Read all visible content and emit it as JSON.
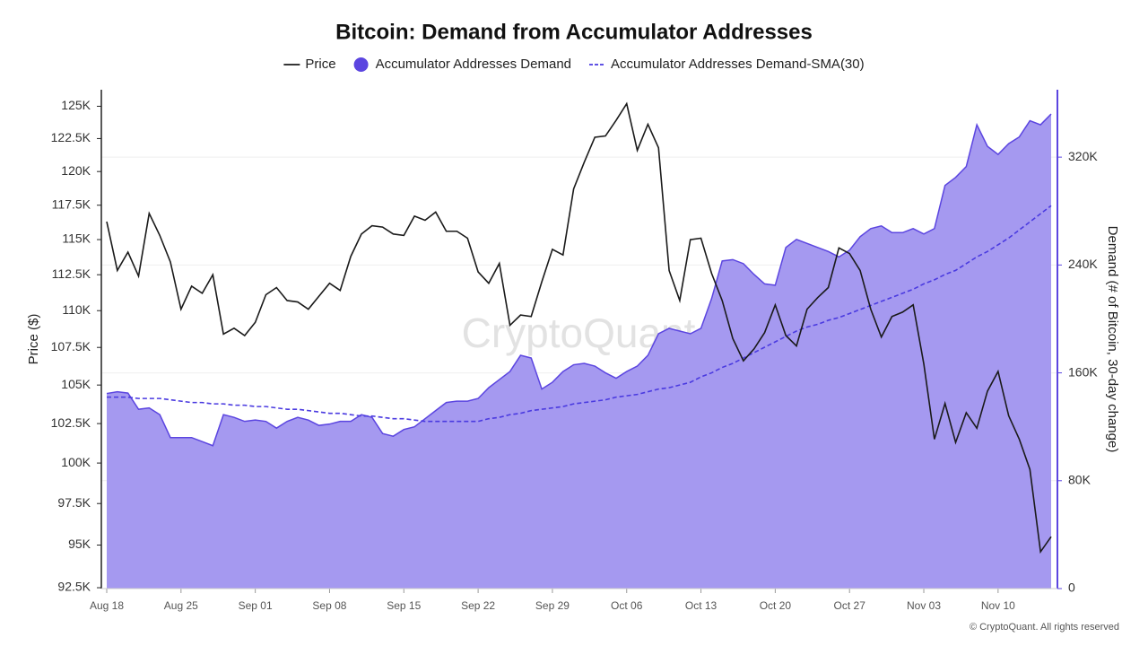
{
  "chart_data": {
    "type": "line",
    "title": "Bitcoin: Demand from Accumulator Addresses",
    "ylabel": "Price ($)",
    "y2label": "Demand (# of Bitcoin, 30-day change)",
    "watermark": "CryptoQuant",
    "copyright": "© CryptoQuant. All rights reserved",
    "ylog": true,
    "grid": true,
    "categories": [
      "Aug 18",
      null,
      null,
      null,
      null,
      null,
      null,
      "Aug 25",
      null,
      null,
      null,
      null,
      null,
      null,
      "Sep 01",
      null,
      null,
      null,
      null,
      null,
      null,
      "Sep 08",
      null,
      null,
      null,
      null,
      null,
      null,
      "Sep 15",
      null,
      null,
      null,
      null,
      null,
      null,
      "Sep 22",
      null,
      null,
      null,
      null,
      null,
      null,
      "Sep 29",
      null,
      null,
      null,
      null,
      null,
      null,
      "Oct 06",
      null,
      null,
      null,
      null,
      null,
      null,
      "Oct 13",
      null,
      null,
      null,
      null,
      null,
      null,
      "Oct 20",
      null,
      null,
      null,
      null,
      null,
      null,
      "Oct 27",
      null,
      null,
      null,
      null,
      null,
      null,
      "Nov 03",
      null,
      null,
      null,
      null,
      null,
      null,
      "Nov 10",
      null,
      null,
      null,
      null,
      null
    ],
    "ylim": [
      92450,
      126300
    ],
    "yticks": [
      {
        "value": 92500,
        "label": "92.5K"
      },
      {
        "value": 95000,
        "label": "95K"
      },
      {
        "value": 97500,
        "label": "97.5K"
      },
      {
        "value": 100000,
        "label": "100K"
      },
      {
        "value": 102500,
        "label": "102.5K"
      },
      {
        "value": 105000,
        "label": "105K"
      },
      {
        "value": 107500,
        "label": "107.5K"
      },
      {
        "value": 110000,
        "label": "110K"
      },
      {
        "value": 112500,
        "label": "112.5K"
      },
      {
        "value": 115000,
        "label": "115K"
      },
      {
        "value": 117500,
        "label": "117.5K"
      },
      {
        "value": 120000,
        "label": "120K"
      },
      {
        "value": 122500,
        "label": "122.5K"
      },
      {
        "value": 125000,
        "label": "125K"
      }
    ],
    "y2lim": [
      0,
      370000
    ],
    "y2ticks": [
      0,
      {
        "value": 80000,
        "label": "80K"
      },
      {
        "value": 160000,
        "label": "160K"
      },
      {
        "value": 240000,
        "label": "240K"
      },
      {
        "value": 320000,
        "label": "320K"
      }
    ],
    "series": [
      {
        "name": "Price",
        "color": "#1a1a1a",
        "mark": "line",
        "axis": "y",
        "values": [
          116300,
          112800,
          114100,
          112400,
          116900,
          115300,
          113400,
          110100,
          111700,
          111200,
          112500,
          108400,
          108800,
          108300,
          109200,
          111100,
          111600,
          110700,
          110600,
          110100,
          111000,
          111900,
          111400,
          113800,
          115400,
          116000,
          115900,
          115400,
          115300,
          116700,
          116400,
          117000,
          115600,
          115600,
          115100,
          112700,
          111900,
          113300,
          109000,
          109700,
          109600,
          112000,
          114300,
          113900,
          118700,
          120700,
          122600,
          122700,
          123900,
          125200,
          121600,
          123600,
          121800,
          112800,
          110700,
          115000,
          115100,
          112600,
          110700,
          108100,
          106600,
          107400,
          108500,
          110400,
          108300,
          107600,
          110100,
          110900,
          111600,
          114400,
          114000,
          112800,
          110100,
          108200,
          109600,
          109900,
          110400,
          106400,
          101500,
          103800,
          101300,
          103200,
          102200,
          104600,
          105900,
          103000,
          101500,
          99600,
          94600,
          95500
        ]
      },
      {
        "name": "Accumulator Addresses Demand",
        "color": "#5b45e0",
        "mark": "area",
        "axis": "y2",
        "values": [
          144700,
          146000,
          145000,
          133000,
          134000,
          129000,
          112000,
          112000,
          112000,
          109000,
          106000,
          129000,
          127000,
          124000,
          125000,
          124000,
          119000,
          124000,
          127000,
          125000,
          121000,
          122000,
          124000,
          124000,
          129000,
          127000,
          115000,
          113000,
          118000,
          120000,
          126000,
          132000,
          138000,
          139000,
          139000,
          141000,
          149000,
          155000,
          161000,
          173000,
          171000,
          148000,
          153000,
          161000,
          166000,
          167000,
          165000,
          160000,
          156000,
          161000,
          165000,
          173000,
          189000,
          193000,
          191000,
          189000,
          193000,
          215000,
          243000,
          244000,
          241000,
          233000,
          226000,
          225000,
          253000,
          259000,
          256000,
          253000,
          250000,
          246000,
          251000,
          261000,
          267000,
          269000,
          264000,
          264000,
          267000,
          263000,
          267000,
          299000,
          305000,
          313000,
          344000,
          328000,
          322000,
          330000,
          335000,
          347000,
          344000,
          352000
        ]
      },
      {
        "name": "Accumulator Addresses Demand-SMA(30)",
        "color": "#4a3ae0",
        "mark": "dashed",
        "axis": "y2",
        "values": [
          142000,
          142000,
          142000,
          141000,
          141000,
          141000,
          140000,
          139000,
          138000,
          138000,
          137000,
          137000,
          136000,
          136000,
          135000,
          135000,
          134000,
          133000,
          133000,
          132000,
          131000,
          130000,
          130000,
          129000,
          128000,
          128000,
          127000,
          126000,
          126000,
          125000,
          124000,
          124000,
          124000,
          124000,
          124000,
          124000,
          126000,
          127000,
          129000,
          130000,
          132000,
          133000,
          134000,
          135000,
          137000,
          138000,
          139000,
          140000,
          142000,
          143000,
          144000,
          146000,
          148000,
          149000,
          151000,
          153000,
          157000,
          160000,
          164000,
          167000,
          171000,
          175000,
          179000,
          183000,
          187000,
          191000,
          194000,
          196000,
          199000,
          201000,
          204000,
          207000,
          210000,
          213000,
          216000,
          219000,
          222000,
          226000,
          229000,
          233000,
          236000,
          241000,
          246000,
          250000,
          255000,
          260000,
          266000,
          272000,
          278000,
          284000
        ]
      }
    ]
  }
}
